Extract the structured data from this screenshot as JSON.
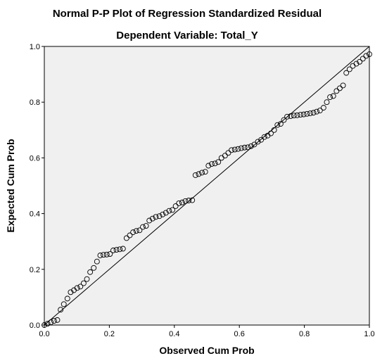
{
  "chart_data": {
    "type": "scatter",
    "title": "Normal P-P Plot of Regression Standardized Residual",
    "subtitle": "Dependent Variable: Total_Y",
    "xlabel": "Observed Cum Prob",
    "ylabel": "Expected Cum Prob",
    "xlim": [
      0,
      1
    ],
    "ylim": [
      0,
      1
    ],
    "x_ticks": [
      "0.0",
      "0.2",
      "0.4",
      "0.6",
      "0.8",
      "1.0"
    ],
    "y_ticks": [
      "0.0",
      "0.2",
      "0.4",
      "0.6",
      "0.8",
      "1.0"
    ],
    "reference_line": [
      [
        0,
        0
      ],
      [
        1,
        1
      ]
    ],
    "grid": false,
    "legend": "none",
    "plot_background": "#f0f0f0",
    "marker": "open-circle",
    "x": [
      0.0,
      0.01,
      0.02,
      0.03,
      0.04,
      0.05,
      0.06,
      0.071,
      0.081,
      0.091,
      0.101,
      0.111,
      0.121,
      0.131,
      0.141,
      0.152,
      0.162,
      0.172,
      0.182,
      0.192,
      0.202,
      0.212,
      0.222,
      0.232,
      0.242,
      0.253,
      0.263,
      0.273,
      0.283,
      0.293,
      0.303,
      0.313,
      0.323,
      0.333,
      0.343,
      0.354,
      0.364,
      0.374,
      0.384,
      0.394,
      0.404,
      0.414,
      0.424,
      0.434,
      0.444,
      0.455,
      0.465,
      0.475,
      0.485,
      0.495,
      0.505,
      0.515,
      0.525,
      0.535,
      0.545,
      0.556,
      0.566,
      0.576,
      0.586,
      0.596,
      0.606,
      0.616,
      0.626,
      0.636,
      0.646,
      0.657,
      0.667,
      0.677,
      0.687,
      0.697,
      0.707,
      0.717,
      0.727,
      0.737,
      0.747,
      0.758,
      0.768,
      0.778,
      0.788,
      0.798,
      0.808,
      0.818,
      0.828,
      0.838,
      0.848,
      0.859,
      0.869,
      0.879,
      0.889,
      0.899,
      0.909,
      0.919,
      0.929,
      0.939,
      0.949,
      0.96,
      0.97,
      0.98,
      0.99,
      1.0
    ],
    "y": [
      0.0,
      0.005,
      0.01,
      0.015,
      0.018,
      0.055,
      0.075,
      0.095,
      0.118,
      0.125,
      0.133,
      0.138,
      0.15,
      0.165,
      0.19,
      0.205,
      0.228,
      0.25,
      0.252,
      0.253,
      0.255,
      0.268,
      0.27,
      0.272,
      0.274,
      0.312,
      0.322,
      0.333,
      0.338,
      0.34,
      0.352,
      0.356,
      0.375,
      0.382,
      0.388,
      0.391,
      0.397,
      0.403,
      0.41,
      0.413,
      0.427,
      0.437,
      0.44,
      0.445,
      0.447,
      0.448,
      0.538,
      0.542,
      0.547,
      0.55,
      0.572,
      0.578,
      0.58,
      0.585,
      0.6,
      0.608,
      0.618,
      0.628,
      0.63,
      0.632,
      0.635,
      0.637,
      0.638,
      0.642,
      0.648,
      0.658,
      0.665,
      0.675,
      0.68,
      0.688,
      0.7,
      0.718,
      0.722,
      0.736,
      0.748,
      0.75,
      0.752,
      0.753,
      0.755,
      0.756,
      0.758,
      0.76,
      0.762,
      0.766,
      0.77,
      0.78,
      0.8,
      0.818,
      0.822,
      0.84,
      0.85,
      0.86,
      0.905,
      0.918,
      0.93,
      0.938,
      0.945,
      0.956,
      0.966,
      0.972
    ]
  }
}
